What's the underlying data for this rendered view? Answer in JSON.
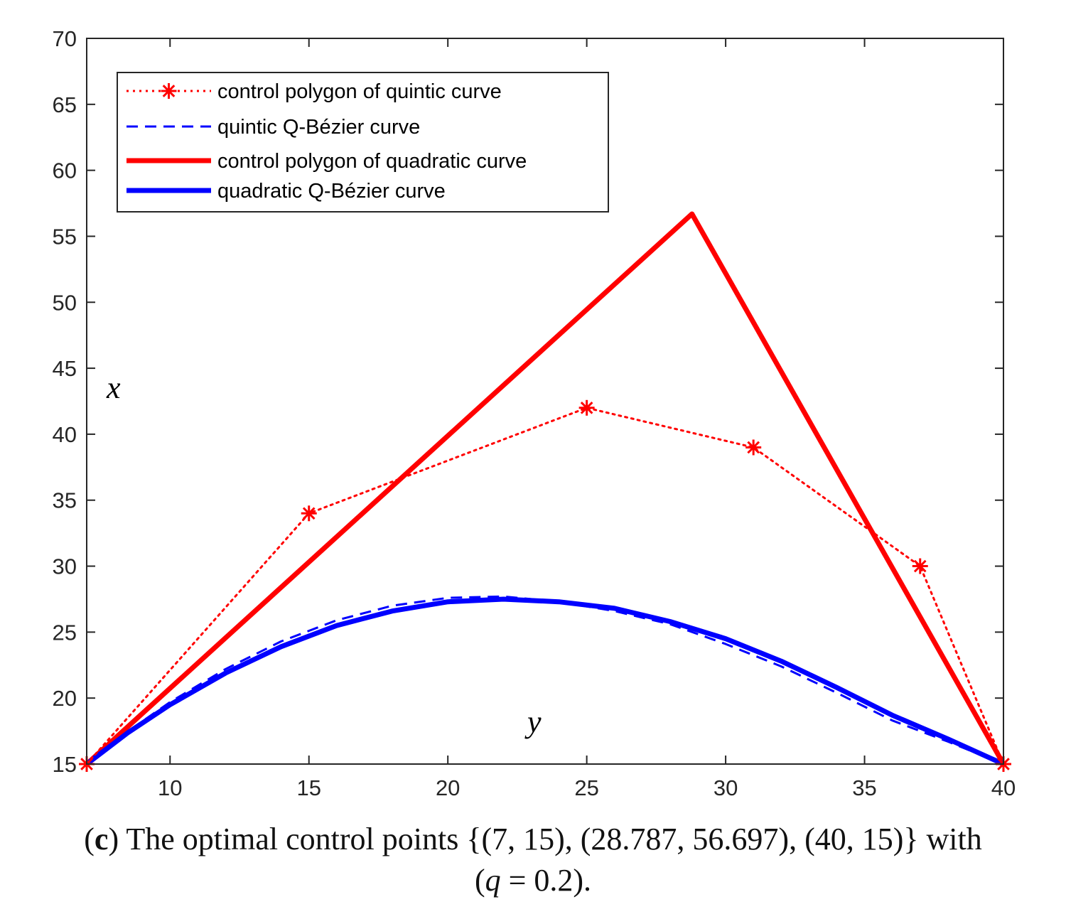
{
  "chart_data": {
    "type": "line",
    "xlabel": "y",
    "ylabel": "x",
    "xlim": [
      7,
      40
    ],
    "ylim": [
      15,
      70
    ],
    "xticks": [
      10,
      15,
      20,
      25,
      30,
      35,
      40
    ],
    "yticks": [
      15,
      20,
      25,
      30,
      35,
      40,
      45,
      50,
      55,
      60,
      65,
      70
    ],
    "legend_position": "top-left",
    "series": [
      {
        "name": "control polygon of quintic curve",
        "color": "#ff0000",
        "style": "dotted",
        "marker": "asterisk",
        "points": [
          [
            7,
            15
          ],
          [
            15,
            34
          ],
          [
            25,
            42
          ],
          [
            31,
            39
          ],
          [
            37,
            30
          ],
          [
            40,
            15
          ]
        ]
      },
      {
        "name": "quintic Q-Bézier curve",
        "color": "#0000ff",
        "style": "dashed",
        "points": [
          [
            7,
            15
          ],
          [
            8.5,
            17.5
          ],
          [
            10,
            19.7
          ],
          [
            12,
            22.2
          ],
          [
            14,
            24.3
          ],
          [
            16,
            25.9
          ],
          [
            18,
            27.0
          ],
          [
            20,
            27.6
          ],
          [
            22,
            27.7
          ],
          [
            24,
            27.3
          ],
          [
            26,
            26.6
          ],
          [
            28,
            25.6
          ],
          [
            30,
            24.1
          ],
          [
            32,
            22.4
          ],
          [
            34,
            20.4
          ],
          [
            36,
            18.3
          ],
          [
            38,
            16.7
          ],
          [
            40,
            15
          ]
        ]
      },
      {
        "name": "control polygon of quadratic curve",
        "color": "#ff0000",
        "style": "solid",
        "points": [
          [
            7,
            15
          ],
          [
            28.787,
            56.697
          ],
          [
            40,
            15
          ]
        ]
      },
      {
        "name": "quadratic Q-Bézier curve",
        "color": "#0000ff",
        "style": "solid",
        "points": [
          [
            7,
            15
          ],
          [
            8.5,
            17.4
          ],
          [
            10,
            19.5
          ],
          [
            12,
            21.9
          ],
          [
            14,
            23.9
          ],
          [
            16,
            25.5
          ],
          [
            18,
            26.6
          ],
          [
            20,
            27.3
          ],
          [
            22,
            27.5
          ],
          [
            24,
            27.3
          ],
          [
            26,
            26.8
          ],
          [
            28,
            25.8
          ],
          [
            30,
            24.5
          ],
          [
            32,
            22.8
          ],
          [
            34,
            20.8
          ],
          [
            36,
            18.7
          ],
          [
            38,
            16.9
          ],
          [
            40,
            15
          ]
        ]
      }
    ]
  },
  "caption": {
    "label": "c",
    "text_1": "The optimal control points {(7, 15), (28.787, 56.697), (40, 15)} with",
    "open_paren": "(",
    "q_var": "q",
    "q_value": " = 0.2)."
  }
}
